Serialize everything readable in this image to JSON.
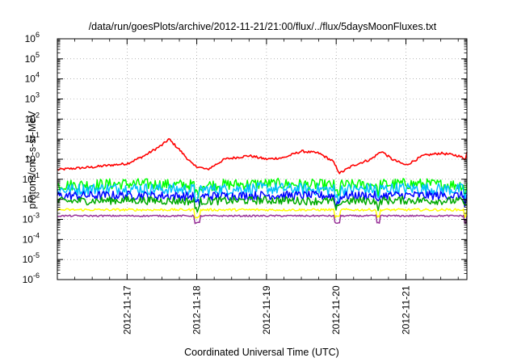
{
  "chart_data": {
    "type": "line",
    "title": "/data/run/goesPlots/archive/2012-11-21/21:00/flux/../flux/5daysMoonFluxes.txt",
    "xlabel": "Coordinated Universal Time (UTC)",
    "ylabel": {
      "base": "protons/cm",
      "sup": "2",
      "rest": "-s-sr-MeV"
    },
    "y_scale": "log",
    "ylim": [
      1e-06,
      1000000.0
    ],
    "y_ticks": [
      {
        "base": "10",
        "exp": "-6"
      },
      {
        "base": "10",
        "exp": "-5"
      },
      {
        "base": "10",
        "exp": "-4"
      },
      {
        "base": "10",
        "exp": "-3"
      },
      {
        "base": "10",
        "exp": "-2"
      },
      {
        "base": "10",
        "exp": "-1"
      },
      {
        "base": "10",
        "exp": "0"
      },
      {
        "base": "10",
        "exp": "1"
      },
      {
        "base": "10",
        "exp": "2"
      },
      {
        "base": "10",
        "exp": "3"
      },
      {
        "base": "10",
        "exp": "4"
      },
      {
        "base": "10",
        "exp": "5"
      },
      {
        "base": "10",
        "exp": "6"
      }
    ],
    "xlim": [
      "2012-11-16 00:00",
      "2012-11-21 21:00"
    ],
    "x_ticks": [
      "2012-11-17",
      "2012-11-18",
      "2012-11-19",
      "2012-11-20",
      "2012-11-21"
    ],
    "grid": true,
    "series": [
      {
        "color": "#ff0000",
        "x_days": [
          0,
          0.25,
          0.5,
          0.75,
          1.0,
          1.25,
          1.5,
          1.6,
          1.75,
          1.95,
          2.15,
          2.4,
          2.75,
          3.0,
          3.25,
          3.5,
          3.75,
          3.95,
          4.05,
          4.25,
          4.5,
          4.65,
          4.8,
          5.0,
          5.25,
          5.5,
          5.75,
          5.85,
          5.9,
          5.98
        ],
        "values": [
          0.3,
          0.35,
          0.4,
          0.5,
          0.6,
          1.5,
          5,
          10,
          3,
          0.5,
          0.3,
          1.0,
          1.5,
          1.0,
          1.2,
          2.5,
          2.0,
          0.8,
          0.2,
          0.5,
          1.0,
          2.5,
          1.0,
          0.5,
          1.5,
          2.0,
          1.5,
          1.0,
          5,
          3.5
        ]
      },
      {
        "color": "#00ff00",
        "x_days": [
          0,
          1,
          2,
          3,
          4,
          5,
          5.98
        ],
        "values": [
          0.05,
          0.06,
          0.05,
          0.06,
          0.05,
          0.06,
          0.05
        ]
      },
      {
        "color": "#00bfff",
        "x_days": [
          0,
          1,
          2,
          3,
          4,
          5,
          5.98
        ],
        "values": [
          0.03,
          0.035,
          0.03,
          0.035,
          0.03,
          0.035,
          0.03
        ]
      },
      {
        "color": "#0000ff",
        "x_days": [
          0,
          1,
          2,
          3,
          4,
          5,
          5.98
        ],
        "values": [
          0.015,
          0.016,
          0.014,
          0.016,
          0.015,
          0.016,
          0.015
        ]
      },
      {
        "color": "#00aa00",
        "x_days": [
          0,
          1,
          2,
          3,
          4,
          5,
          5.98
        ],
        "values": [
          0.008,
          0.009,
          0.008,
          0.009,
          0.008,
          0.009,
          0.008
        ]
      },
      {
        "color": "#ffff00",
        "x_days": [
          0,
          1,
          2,
          3,
          4,
          5,
          5.98
        ],
        "values": [
          0.003,
          0.003,
          0.003,
          0.003,
          0.003,
          0.003,
          0.003
        ]
      },
      {
        "color": "#993399",
        "x_days": [
          0,
          1,
          2,
          3,
          4,
          5,
          5.98
        ],
        "values": [
          0.0015,
          0.0015,
          0.0015,
          0.0015,
          0.0015,
          0.0015,
          0.0015
        ]
      }
    ]
  }
}
